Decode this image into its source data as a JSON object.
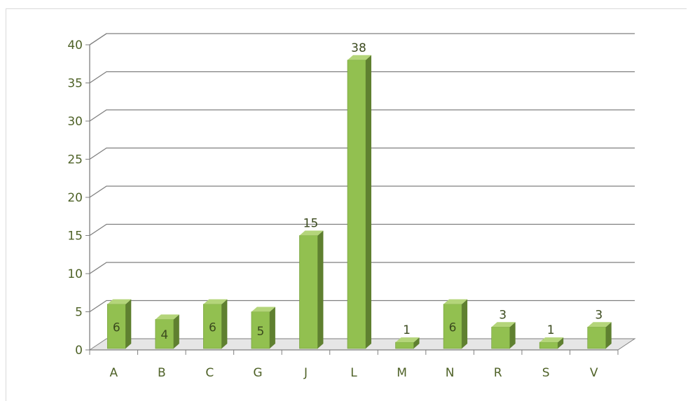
{
  "chart_data": {
    "type": "bar",
    "categories": [
      "A",
      "B",
      "C",
      "G",
      "J",
      "L",
      "M",
      "N",
      "R",
      "S",
      "V"
    ],
    "values": [
      6,
      4,
      6,
      5,
      15,
      38,
      1,
      6,
      3,
      1,
      3
    ],
    "ylim": [
      0,
      40
    ],
    "yticks": [
      "0",
      "5",
      "10",
      "15",
      "20",
      "25",
      "30",
      "35",
      "40"
    ],
    "title": "",
    "xlabel": "",
    "ylabel": "",
    "grid": true,
    "legend": "none",
    "colors": {
      "bar_front": "#92c050",
      "bar_side": "#5f8030",
      "bar_top": "#b4d57a",
      "gridline": "#7f7f7f",
      "axis_text": "#4f6228"
    }
  }
}
